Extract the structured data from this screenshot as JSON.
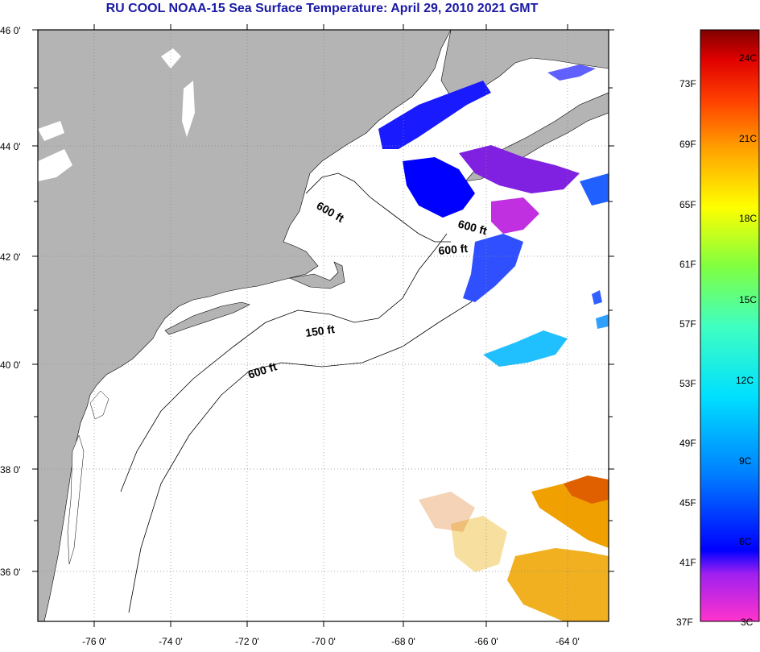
{
  "title": "RU COOL  NOAA-15  Sea Surface Temperature:  April 29, 2010 2021 GMT",
  "lat_labels": [
    "46 0'",
    "44 0'",
    "42 0'",
    "40 0'",
    "38 0'",
    "36 0'"
  ],
  "lon_labels": [
    "-76 0'",
    "-74 0'",
    "-72 0'",
    "-70 0'",
    "-68 0'",
    "-66 0'",
    "-64 0'"
  ],
  "contour_labels": [
    "600 ft",
    "600 ft",
    "600 ft",
    "150 ft",
    "600 ft"
  ],
  "colorbar": {
    "f_labels": [
      "73F",
      "69F",
      "65F",
      "61F",
      "57F",
      "53F",
      "49F",
      "45F",
      "41F",
      "37F"
    ],
    "c_labels": [
      "24C",
      "21C",
      "18C",
      "15C",
      "12C",
      "9C",
      "6C",
      "3C"
    ]
  },
  "colors": {
    "land": "#b4b4b4",
    "ocean": "#ffffff",
    "title": "#1a1aa6"
  }
}
